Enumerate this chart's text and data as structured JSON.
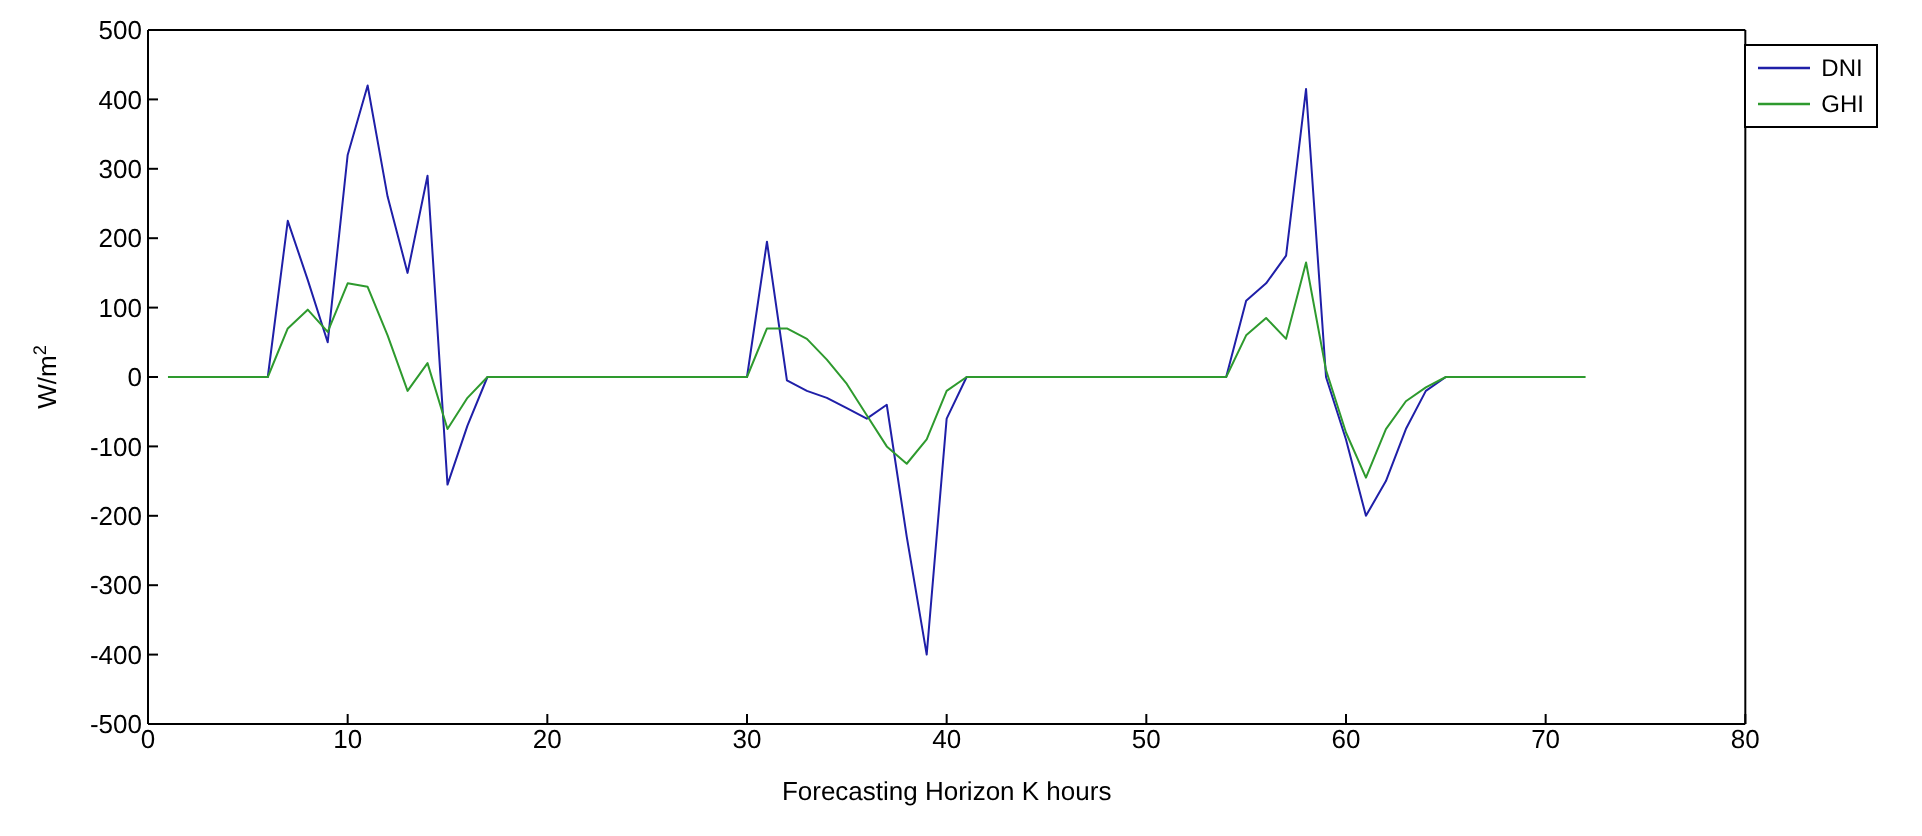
{
  "chart_data": {
    "type": "line",
    "xlabel": "Forecasting Horizon K hours",
    "ylabel": "W/m$^{2}$",
    "x": [
      1,
      2,
      3,
      4,
      5,
      6,
      7,
      8,
      9,
      10,
      11,
      12,
      13,
      14,
      15,
      16,
      17,
      18,
      19,
      20,
      21,
      22,
      23,
      24,
      25,
      26,
      27,
      28,
      29,
      30,
      31,
      32,
      33,
      34,
      35,
      36,
      37,
      38,
      39,
      40,
      41,
      42,
      43,
      44,
      45,
      46,
      47,
      48,
      49,
      50,
      51,
      52,
      53,
      54,
      55,
      56,
      57,
      58,
      59,
      60,
      61,
      62,
      63,
      64,
      65,
      66,
      67,
      68,
      69,
      70,
      71,
      72
    ],
    "series": [
      {
        "name": "DNI",
        "color": "#1f1fa8",
        "values": [
          null,
          null,
          null,
          null,
          0,
          0,
          225,
          140,
          50,
          320,
          420,
          260,
          150,
          290,
          -155,
          -70,
          0,
          0,
          0,
          0,
          0,
          0,
          0,
          0,
          0,
          0,
          0,
          0,
          0,
          0,
          195,
          -5,
          -20,
          -30,
          -45,
          -60,
          -40,
          -230,
          -400,
          -60,
          0,
          0,
          0,
          0,
          0,
          0,
          0,
          0,
          0,
          0,
          0,
          0,
          0,
          0,
          110,
          135,
          175,
          415,
          0,
          -90,
          -200,
          -150,
          -75,
          -20,
          0,
          0,
          null,
          null,
          null,
          null,
          null,
          null
        ]
      },
      {
        "name": "GHI",
        "color": "#2e9a2e",
        "values": [
          0,
          0,
          0,
          0,
          0,
          0,
          70,
          97,
          65,
          135,
          130,
          60,
          -20,
          20,
          -75,
          -30,
          0,
          0,
          0,
          0,
          0,
          0,
          0,
          0,
          0,
          0,
          0,
          0,
          0,
          0,
          70,
          70,
          55,
          25,
          -10,
          -55,
          -100,
          -125,
          -90,
          -20,
          0,
          0,
          0,
          0,
          0,
          0,
          0,
          0,
          0,
          0,
          0,
          0,
          0,
          0,
          60,
          85,
          55,
          165,
          10,
          -80,
          -145,
          -75,
          -35,
          -15,
          0,
          0,
          0,
          0,
          0,
          0,
          0,
          0
        ]
      }
    ],
    "xlim": [
      0,
      80
    ],
    "xticks": [
      0,
      10,
      20,
      30,
      40,
      50,
      60,
      70,
      80
    ],
    "ylim": [
      -500,
      500
    ],
    "yticks": [
      -500,
      -400,
      -300,
      -200,
      -100,
      0,
      100,
      200,
      300,
      400,
      500
    ],
    "grid": false,
    "legend": "top right",
    "marker": "none",
    "line_style": "solid"
  }
}
